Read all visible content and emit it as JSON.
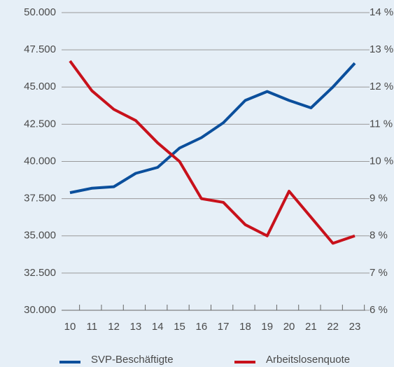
{
  "chart_data": {
    "type": "line",
    "categories": [
      "10",
      "11",
      "12",
      "13",
      "14",
      "15",
      "16",
      "17",
      "18",
      "19",
      "20",
      "21",
      "22",
      "23"
    ],
    "series": [
      {
        "name": "SVP-Beschäftigte",
        "color": "#0b4f9c",
        "values": [
          37900,
          38200,
          38300,
          39200,
          39600,
          40900,
          41600,
          42600,
          44100,
          44700,
          44100,
          43600,
          45000,
          46600
        ]
      },
      {
        "name": "Arbeitslosenquote",
        "color": "#c8111b",
        "axis": "y2",
        "values": [
          12.7,
          11.9,
          11.4,
          11.1,
          10.5,
          10.0,
          9.0,
          8.9,
          8.3,
          8.0,
          9.2,
          8.5,
          7.8,
          8.0
        ]
      }
    ],
    "ylim": [
      30000,
      50000
    ],
    "yticks": [
      {
        "value": 30000,
        "label": "30.000"
      },
      {
        "value": 32500,
        "label": "32.500"
      },
      {
        "value": 35000,
        "label": "35.000"
      },
      {
        "value": 37500,
        "label": "37.500"
      },
      {
        "value": 40000,
        "label": "40.000"
      },
      {
        "value": 42500,
        "label": "42.500"
      },
      {
        "value": 45000,
        "label": "45.000"
      },
      {
        "value": 47500,
        "label": "47.500"
      },
      {
        "value": 50000,
        "label": "50.000"
      }
    ],
    "y2lim": [
      6,
      14
    ],
    "y2ticks": [
      {
        "value": 6,
        "label": "6 %"
      },
      {
        "value": 7,
        "label": "7 %"
      },
      {
        "value": 8,
        "label": "8 %"
      },
      {
        "value": 9,
        "label": "9 %"
      },
      {
        "value": 10,
        "label": "10 %"
      },
      {
        "value": 11,
        "label": "11 %"
      },
      {
        "value": 12,
        "label": "12 %"
      },
      {
        "value": 13,
        "label": "13 %"
      },
      {
        "value": 14,
        "label": "14 %"
      }
    ],
    "grid": true,
    "legend": "bottom"
  }
}
